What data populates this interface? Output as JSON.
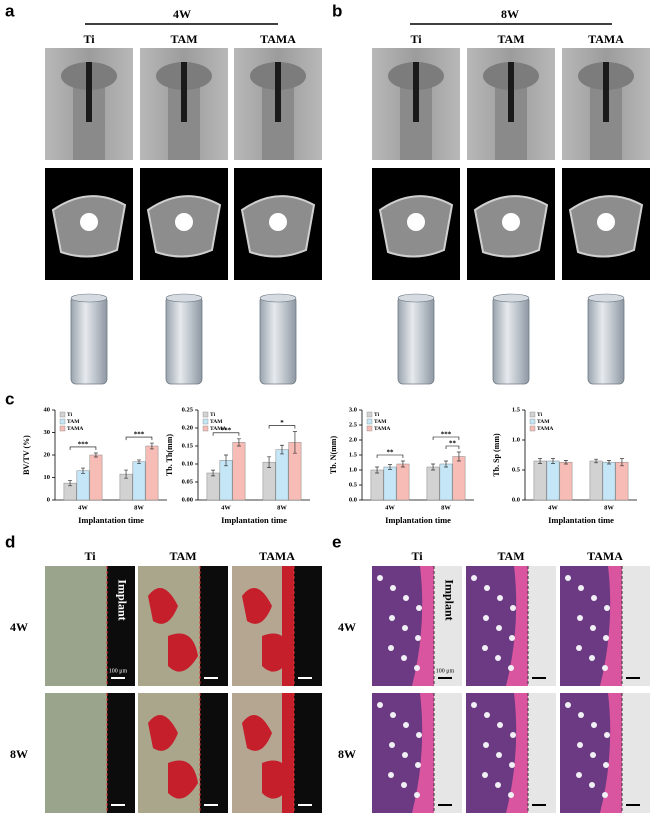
{
  "panel_a": {
    "label": "a",
    "time": "4W",
    "groups": [
      "Ti",
      "TAM",
      "TAMA"
    ]
  },
  "panel_b": {
    "label": "b",
    "time": "8W",
    "groups": [
      "Ti",
      "TAM",
      "TAMA"
    ]
  },
  "panel_c": {
    "label": "c"
  },
  "panel_d": {
    "label": "d",
    "columns": [
      "Ti",
      "TAM",
      "TAMA"
    ],
    "rows": [
      "4W",
      "8W"
    ],
    "implant_label": "Implant",
    "scale_bar": "100 μm"
  },
  "panel_e": {
    "label": "e",
    "columns": [
      "Ti",
      "TAM",
      "TAMA"
    ],
    "rows": [
      "4W",
      "8W"
    ],
    "implant_label": "Implant",
    "scale_bar": "100 μm"
  },
  "chart_data": [
    {
      "type": "bar",
      "ylabel": "BV/TV (%)",
      "xlabel": "Implantation time",
      "categories": [
        "4W",
        "8W"
      ],
      "series": [
        {
          "name": "Ti",
          "color": "#d2d2d2",
          "values": [
            7.5,
            11.5
          ],
          "errors": [
            1.2,
            1.8
          ]
        },
        {
          "name": "TAM",
          "color": "#c4e6f6",
          "values": [
            13,
            17
          ],
          "errors": [
            1.2,
            0.8
          ]
        },
        {
          "name": "TAMA",
          "color": "#f7bcb5",
          "values": [
            20,
            24
          ],
          "errors": [
            0.9,
            1.3
          ]
        }
      ],
      "ylim": [
        0,
        40
      ],
      "yticks": [
        0,
        10,
        20,
        30,
        40
      ],
      "annotations": [
        {
          "text": "***",
          "category": "4W",
          "between": [
            "Ti",
            "TAMA"
          ]
        },
        {
          "text": "***",
          "category": "8W",
          "between": [
            "Ti",
            "TAMA"
          ]
        }
      ]
    },
    {
      "type": "bar",
      "ylabel": "Tb. Th(mm)",
      "xlabel": "Implantation time",
      "categories": [
        "4W",
        "8W"
      ],
      "series": [
        {
          "name": "Ti",
          "color": "#d2d2d2",
          "values": [
            0.075,
            0.105
          ],
          "errors": [
            0.008,
            0.015
          ]
        },
        {
          "name": "TAM",
          "color": "#c4e6f6",
          "values": [
            0.11,
            0.14
          ],
          "errors": [
            0.015,
            0.012
          ]
        },
        {
          "name": "TAMA",
          "color": "#f7bcb5",
          "values": [
            0.16,
            0.16
          ],
          "errors": [
            0.01,
            0.03
          ]
        }
      ],
      "ylim": [
        0,
        0.25
      ],
      "yticks": [
        {
          "value": 0,
          "label": "0.00"
        },
        0.05,
        {
          "value": 0.1,
          "label": "0.10"
        },
        0.15,
        {
          "value": 0.2,
          "label": "0.20"
        },
        0.25
      ],
      "annotations": [
        {
          "text": "***",
          "category": "4W",
          "between": [
            "Ti",
            "TAMA"
          ]
        },
        {
          "text": "*",
          "category": "8W",
          "between": [
            "Ti",
            "TAMA"
          ]
        }
      ]
    },
    {
      "type": "bar",
      "ylabel": "Tb. N(mm)",
      "xlabel": "Implantation time",
      "categories": [
        "4W",
        "8W"
      ],
      "series": [
        {
          "name": "Ti",
          "color": "#d2d2d2",
          "values": [
            1.0,
            1.1
          ],
          "errors": [
            0.1,
            0.1
          ]
        },
        {
          "name": "TAM",
          "color": "#c4e6f6",
          "values": [
            1.1,
            1.2
          ],
          "errors": [
            0.08,
            0.1
          ]
        },
        {
          "name": "TAMA",
          "color": "#f7bcb5",
          "values": [
            1.2,
            1.45
          ],
          "errors": [
            0.1,
            0.15
          ]
        }
      ],
      "ylim": [
        0,
        3.0
      ],
      "yticks": [
        {
          "value": 0,
          "label": "0.0"
        },
        0.5,
        {
          "value": 1,
          "label": "1.0"
        },
        1.5,
        {
          "value": 2,
          "label": "2.0"
        },
        2.5,
        {
          "value": 3,
          "label": "3.0"
        }
      ],
      "annotations": [
        {
          "text": "**",
          "category": "4W",
          "between": [
            "Ti",
            "TAMA"
          ]
        },
        {
          "text": "**",
          "category": "8W",
          "between": [
            "TAM",
            "TAMA"
          ]
        },
        {
          "text": "***",
          "category": "8W",
          "between": [
            "Ti",
            "TAMA"
          ]
        }
      ]
    },
    {
      "type": "bar",
      "ylabel": "Tb. Sp (mm)",
      "xlabel": "Implantation time",
      "categories": [
        "4W",
        "8W"
      ],
      "series": [
        {
          "name": "Ti",
          "color": "#d2d2d2",
          "values": [
            0.65,
            0.65
          ],
          "errors": [
            0.04,
            0.03
          ]
        },
        {
          "name": "TAM",
          "color": "#c4e6f6",
          "values": [
            0.65,
            0.63
          ],
          "errors": [
            0.04,
            0.03
          ]
        },
        {
          "name": "TAMA",
          "color": "#f7bcb5",
          "values": [
            0.63,
            0.63
          ],
          "errors": [
            0.03,
            0.06
          ]
        }
      ],
      "ylim": [
        0,
        1.5
      ],
      "yticks": [
        {
          "value": 0,
          "label": "0.0"
        },
        0.5,
        {
          "value": 1,
          "label": "1.0"
        },
        1.5
      ],
      "annotations": []
    }
  ]
}
